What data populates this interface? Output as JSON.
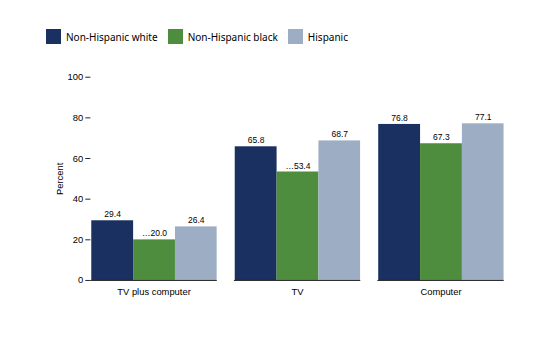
{
  "chart_data": {
    "type": "bar",
    "categories": [
      "TV plus computer",
      "TV",
      "Computer"
    ],
    "series": [
      {
        "name": "Non-Hispanic white",
        "color": "#1a3060",
        "values": [
          29.4,
          65.8,
          76.8
        ]
      },
      {
        "name": "Non-Hispanic black",
        "color": "#4e8c3e",
        "values": [
          20.0,
          53.4,
          67.3
        ],
        "value_labels": [
          "…20.0",
          "…53.4",
          "67.3"
        ]
      },
      {
        "name": "Hispanic",
        "color": "#9dadc4",
        "values": [
          26.4,
          68.7,
          77.1
        ]
      }
    ],
    "ylabel": "Percent",
    "ylim": [
      0,
      100
    ],
    "yticks": [
      0,
      20,
      40,
      60,
      80,
      100
    ],
    "data_labels": true,
    "legend": "top",
    "grid": false
  }
}
